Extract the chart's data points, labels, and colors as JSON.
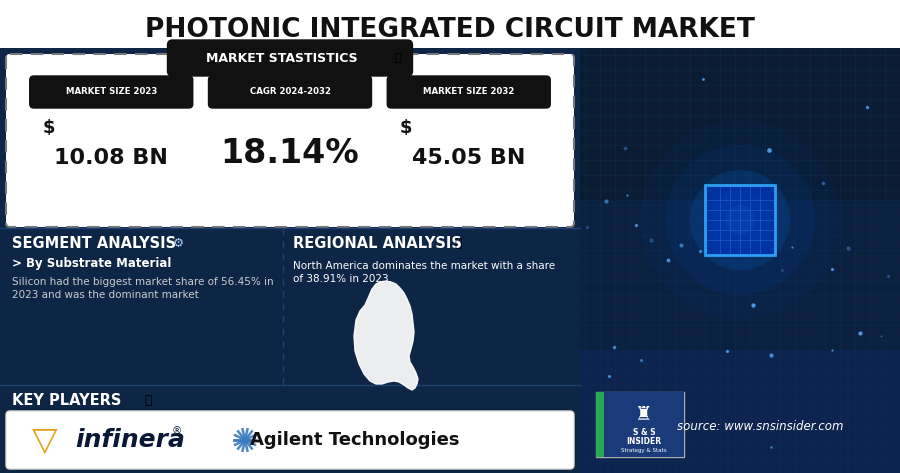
{
  "title": "PHOTONIC INTEGRATED CIRCUIT MARKET",
  "stats_header": "MARKET STASTISTICS",
  "stat1_label": "MARKET SIZE 2023",
  "stat2_label": "CAGR 2024-2032",
  "stat3_label": "MARKET SIZE 2032",
  "stat1_dollar": "$",
  "stat1_value": "10.08 BN",
  "stat2_value": "18.14%",
  "stat3_dollar": "$",
  "stat3_value": "45.05 BN",
  "segment_title": "SEGMENT ANALYSIS",
  "segment_sub": "> By Substrate Material",
  "segment_body1": "Silicon had the biggest market share of 56.45% in",
  "segment_body2": "2023 and was the dominant market",
  "regional_title": "REGIONAL ANALYSIS",
  "regional_body1": "North America dominates the market with a share",
  "regional_body2": "of 38.91% in 2023.",
  "key_players_title": "KEY PLAYERS",
  "infinera_text": "infinera",
  "agilent_text": "Agilent Technologies",
  "source_text": "source: www.snsinsider.com",
  "white": "#ffffff",
  "black": "#111111",
  "dark_navy": "#0d2645",
  "gold": "#e8a020",
  "agilent_blue": "#3a7abf",
  "light_white": "#e8e8e8",
  "text_light": "#cccccc",
  "divider_color": "#1e4070",
  "stats_panel_bg": "#1a3a6a",
  "right_panel_bg": "#0a1c32"
}
